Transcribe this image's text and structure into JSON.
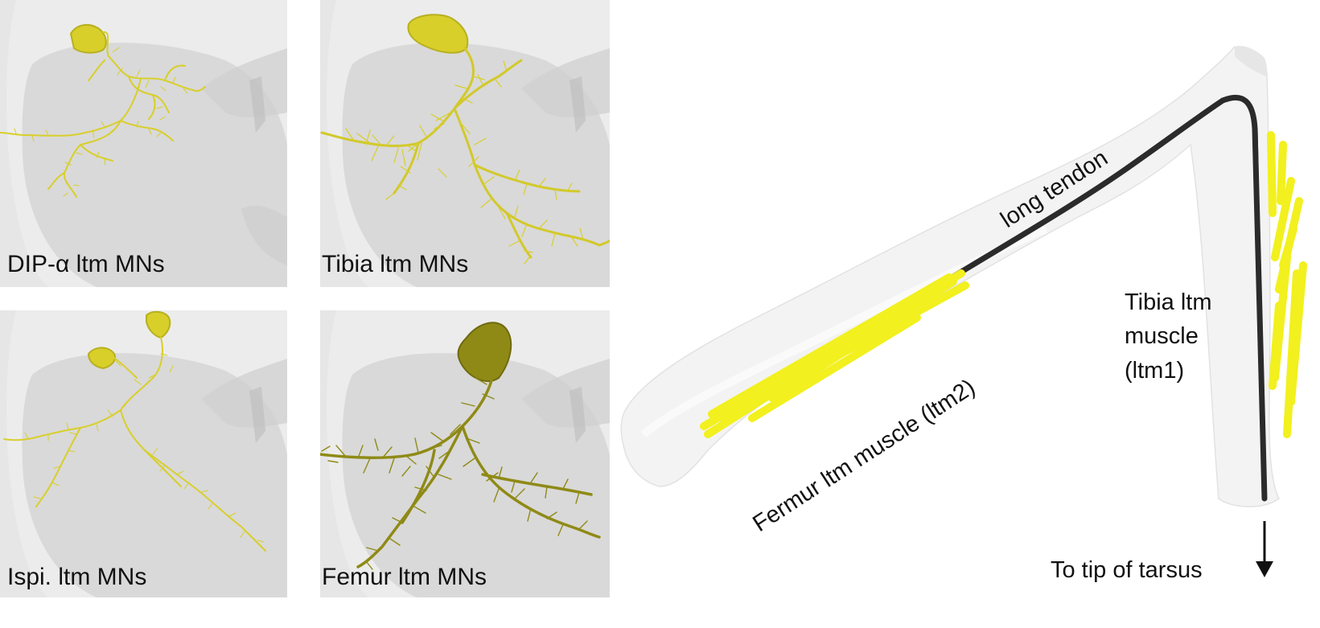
{
  "panels": [
    {
      "label": "DIP-α ltm MNs"
    },
    {
      "label": "Tibia ltm MNs"
    },
    {
      "label": "Ispi. ltm MNs"
    },
    {
      "label": "Femur ltm MNs"
    }
  ],
  "leg": {
    "tendon_label": "long tendon",
    "femur_muscle_label": "Fermur ltm muscle (ltm2)",
    "tibia_muscle_label_lines": [
      "Tibia ltm",
      "muscle",
      "(ltm1)"
    ],
    "arrow_label": "To tip of tarsus"
  },
  "colors": {
    "neuron": "#d8cf2a",
    "neuron_dark": "#8f8a16",
    "muscle": "#f2f01e",
    "tendon": "#2b2b2b",
    "tissue": "#dcdcdc"
  }
}
